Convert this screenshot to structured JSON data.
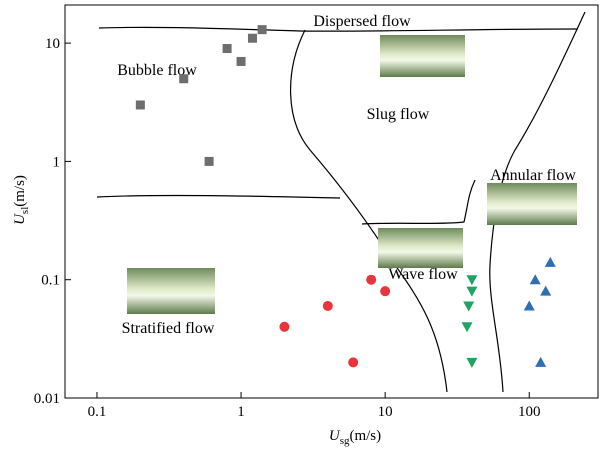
{
  "chart_data": {
    "type": "scatter",
    "x_label": {
      "symbol": "U",
      "subscript": "sg",
      "unit": "(m/s)"
    },
    "y_label": {
      "symbol": "U",
      "subscript": "sl",
      "unit": "(m/s)"
    },
    "xscale": "log",
    "yscale": "log",
    "xlim": [
      0.06,
      300
    ],
    "ylim": [
      0.01,
      21
    ],
    "xticks": [
      0.1,
      1,
      10,
      100
    ],
    "yticks": [
      0.01,
      0.1,
      1,
      10
    ],
    "annotations": [
      "Dispersed flow",
      "Bubble flow",
      "Slug flow",
      "Annular flow",
      "Wave flow",
      "Stratified flow"
    ],
    "series": [
      {
        "color": "#6e6e6e",
        "marker": "square",
        "x": [
          0.2,
          0.4,
          0.6,
          0.8,
          1,
          1.2,
          1.4
        ],
        "y": [
          3,
          5,
          1,
          9,
          7,
          11,
          13
        ]
      },
      {
        "color": "#e8343a",
        "marker": "circle",
        "x": [
          2,
          4,
          6,
          8,
          10
        ],
        "y": [
          0.04,
          0.06,
          0.02,
          0.1,
          0.08
        ]
      },
      {
        "color": "#1fa463",
        "marker": "triangle-down",
        "x": [
          40,
          40,
          38,
          37,
          40
        ],
        "y": [
          0.1,
          0.08,
          0.06,
          0.04,
          0.02
        ]
      },
      {
        "color": "#2f6db5",
        "marker": "triangle-up",
        "x": [
          140,
          110,
          130,
          100,
          120
        ],
        "y": [
          0.14,
          0.1,
          0.08,
          0.06,
          0.02
        ]
      }
    ]
  }
}
